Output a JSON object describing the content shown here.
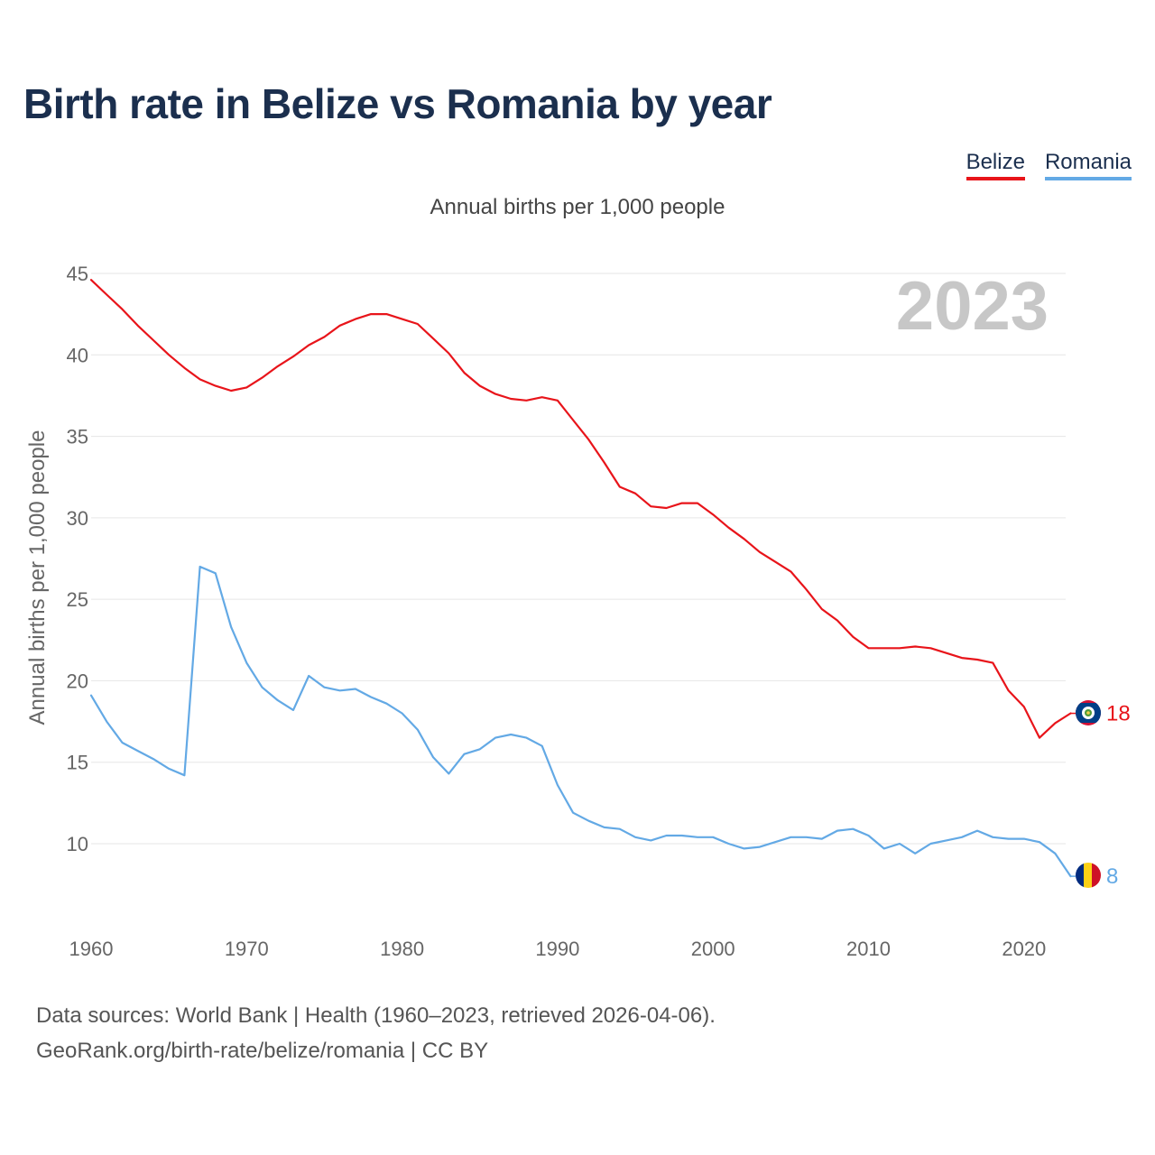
{
  "title": "Birth rate in Belize vs Romania by year",
  "legend": [
    {
      "label": "Belize",
      "color": "#e8141a"
    },
    {
      "label": "Romania",
      "color": "#63a9e5"
    }
  ],
  "current_year": "2023",
  "footer": {
    "line1": "Data sources: World Bank | Health (1960–2023, retrieved 2026-04-06).",
    "line2": "GeoRank.org/birth-rate/belize/romania | CC BY"
  },
  "chart_data": {
    "type": "line",
    "title": "Birth rate in Belize vs Romania by year",
    "subtitle": "Annual births per 1,000 people",
    "xlabel": "",
    "ylabel": "Annual births per 1,000 people",
    "xlim": [
      1960,
      2023
    ],
    "ylim": [
      7,
      45
    ],
    "x_ticks": [
      1960,
      1970,
      1980,
      1990,
      2000,
      2010,
      2020
    ],
    "y_ticks": [
      10,
      15,
      20,
      25,
      30,
      35,
      40,
      45
    ],
    "grid": true,
    "legend_position": "top-right",
    "x": [
      1960,
      1961,
      1962,
      1963,
      1964,
      1965,
      1966,
      1967,
      1968,
      1969,
      1970,
      1971,
      1972,
      1973,
      1974,
      1975,
      1976,
      1977,
      1978,
      1979,
      1980,
      1981,
      1982,
      1983,
      1984,
      1985,
      1986,
      1987,
      1988,
      1989,
      1990,
      1991,
      1992,
      1993,
      1994,
      1995,
      1996,
      1997,
      1998,
      1999,
      2000,
      2001,
      2002,
      2003,
      2004,
      2005,
      2006,
      2007,
      2008,
      2009,
      2010,
      2011,
      2012,
      2013,
      2014,
      2015,
      2016,
      2017,
      2018,
      2019,
      2020,
      2021,
      2022,
      2023
    ],
    "series": [
      {
        "name": "Belize",
        "color": "#e8141a",
        "end_label": "18",
        "values": [
          44.6,
          43.7,
          42.8,
          41.8,
          40.9,
          40.0,
          39.2,
          38.5,
          38.1,
          37.8,
          38.0,
          38.6,
          39.3,
          39.9,
          40.6,
          41.1,
          41.8,
          42.2,
          42.5,
          42.5,
          42.2,
          41.9,
          41.0,
          40.1,
          38.9,
          38.1,
          37.6,
          37.3,
          37.2,
          37.4,
          37.2,
          36.0,
          34.8,
          33.4,
          31.9,
          31.5,
          30.7,
          30.6,
          30.9,
          30.9,
          30.2,
          29.4,
          28.7,
          27.9,
          27.3,
          26.7,
          25.6,
          24.4,
          23.7,
          22.7,
          22.0,
          22.0,
          22.0,
          22.1,
          22.0,
          21.7,
          21.4,
          21.3,
          21.1,
          19.4,
          18.4,
          16.5,
          17.4,
          18.0
        ]
      },
      {
        "name": "Romania",
        "color": "#63a9e5",
        "end_label": "8",
        "values": [
          19.1,
          17.5,
          16.2,
          15.7,
          15.2,
          14.6,
          14.2,
          27.0,
          26.6,
          23.3,
          21.1,
          19.6,
          18.8,
          18.2,
          20.3,
          19.6,
          19.4,
          19.5,
          19.0,
          18.6,
          18.0,
          17.0,
          15.3,
          14.3,
          15.5,
          15.8,
          16.5,
          16.7,
          16.5,
          16.0,
          13.6,
          11.9,
          11.4,
          11.0,
          10.9,
          10.4,
          10.2,
          10.5,
          10.5,
          10.4,
          10.4,
          10.0,
          9.7,
          9.8,
          10.1,
          10.4,
          10.4,
          10.3,
          10.8,
          10.9,
          10.5,
          9.7,
          10.0,
          9.4,
          10.0,
          10.2,
          10.4,
          10.8,
          10.4,
          10.3,
          10.3,
          10.1,
          9.4,
          8.0
        ]
      }
    ]
  }
}
